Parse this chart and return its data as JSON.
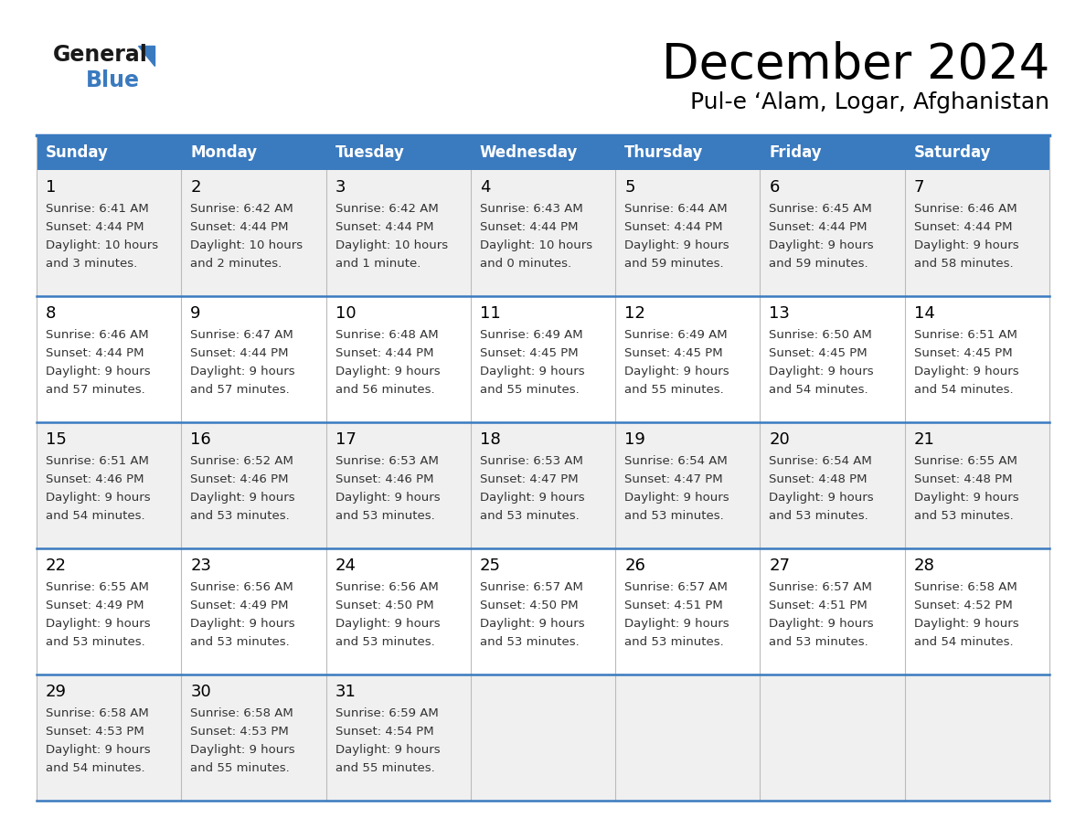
{
  "title": "December 2024",
  "subtitle": "Pul-e ‘Alam, Logar, Afghanistan",
  "header_color": "#3a7abf",
  "header_text_color": "#ffffff",
  "cell_bg_even": "#f0f0f0",
  "cell_bg_odd": "#ffffff",
  "text_color": "#333333",
  "border_color": "#3a7abf",
  "day_headers": [
    "Sunday",
    "Monday",
    "Tuesday",
    "Wednesday",
    "Thursday",
    "Friday",
    "Saturday"
  ],
  "weeks": [
    [
      {
        "day": "1",
        "sunrise": "6:41 AM",
        "sunset": "4:44 PM",
        "daylight_h": "10 hours",
        "daylight_m": "and 3 minutes."
      },
      {
        "day": "2",
        "sunrise": "6:42 AM",
        "sunset": "4:44 PM",
        "daylight_h": "10 hours",
        "daylight_m": "and 2 minutes."
      },
      {
        "day": "3",
        "sunrise": "6:42 AM",
        "sunset": "4:44 PM",
        "daylight_h": "10 hours",
        "daylight_m": "and 1 minute."
      },
      {
        "day": "4",
        "sunrise": "6:43 AM",
        "sunset": "4:44 PM",
        "daylight_h": "10 hours",
        "daylight_m": "and 0 minutes."
      },
      {
        "day": "5",
        "sunrise": "6:44 AM",
        "sunset": "4:44 PM",
        "daylight_h": "9 hours",
        "daylight_m": "and 59 minutes."
      },
      {
        "day": "6",
        "sunrise": "6:45 AM",
        "sunset": "4:44 PM",
        "daylight_h": "9 hours",
        "daylight_m": "and 59 minutes."
      },
      {
        "day": "7",
        "sunrise": "6:46 AM",
        "sunset": "4:44 PM",
        "daylight_h": "9 hours",
        "daylight_m": "and 58 minutes."
      }
    ],
    [
      {
        "day": "8",
        "sunrise": "6:46 AM",
        "sunset": "4:44 PM",
        "daylight_h": "9 hours",
        "daylight_m": "and 57 minutes."
      },
      {
        "day": "9",
        "sunrise": "6:47 AM",
        "sunset": "4:44 PM",
        "daylight_h": "9 hours",
        "daylight_m": "and 57 minutes."
      },
      {
        "day": "10",
        "sunrise": "6:48 AM",
        "sunset": "4:44 PM",
        "daylight_h": "9 hours",
        "daylight_m": "and 56 minutes."
      },
      {
        "day": "11",
        "sunrise": "6:49 AM",
        "sunset": "4:45 PM",
        "daylight_h": "9 hours",
        "daylight_m": "and 55 minutes."
      },
      {
        "day": "12",
        "sunrise": "6:49 AM",
        "sunset": "4:45 PM",
        "daylight_h": "9 hours",
        "daylight_m": "and 55 minutes."
      },
      {
        "day": "13",
        "sunrise": "6:50 AM",
        "sunset": "4:45 PM",
        "daylight_h": "9 hours",
        "daylight_m": "and 54 minutes."
      },
      {
        "day": "14",
        "sunrise": "6:51 AM",
        "sunset": "4:45 PM",
        "daylight_h": "9 hours",
        "daylight_m": "and 54 minutes."
      }
    ],
    [
      {
        "day": "15",
        "sunrise": "6:51 AM",
        "sunset": "4:46 PM",
        "daylight_h": "9 hours",
        "daylight_m": "and 54 minutes."
      },
      {
        "day": "16",
        "sunrise": "6:52 AM",
        "sunset": "4:46 PM",
        "daylight_h": "9 hours",
        "daylight_m": "and 53 minutes."
      },
      {
        "day": "17",
        "sunrise": "6:53 AM",
        "sunset": "4:46 PM",
        "daylight_h": "9 hours",
        "daylight_m": "and 53 minutes."
      },
      {
        "day": "18",
        "sunrise": "6:53 AM",
        "sunset": "4:47 PM",
        "daylight_h": "9 hours",
        "daylight_m": "and 53 minutes."
      },
      {
        "day": "19",
        "sunrise": "6:54 AM",
        "sunset": "4:47 PM",
        "daylight_h": "9 hours",
        "daylight_m": "and 53 minutes."
      },
      {
        "day": "20",
        "sunrise": "6:54 AM",
        "sunset": "4:48 PM",
        "daylight_h": "9 hours",
        "daylight_m": "and 53 minutes."
      },
      {
        "day": "21",
        "sunrise": "6:55 AM",
        "sunset": "4:48 PM",
        "daylight_h": "9 hours",
        "daylight_m": "and 53 minutes."
      }
    ],
    [
      {
        "day": "22",
        "sunrise": "6:55 AM",
        "sunset": "4:49 PM",
        "daylight_h": "9 hours",
        "daylight_m": "and 53 minutes."
      },
      {
        "day": "23",
        "sunrise": "6:56 AM",
        "sunset": "4:49 PM",
        "daylight_h": "9 hours",
        "daylight_m": "and 53 minutes."
      },
      {
        "day": "24",
        "sunrise": "6:56 AM",
        "sunset": "4:50 PM",
        "daylight_h": "9 hours",
        "daylight_m": "and 53 minutes."
      },
      {
        "day": "25",
        "sunrise": "6:57 AM",
        "sunset": "4:50 PM",
        "daylight_h": "9 hours",
        "daylight_m": "and 53 minutes."
      },
      {
        "day": "26",
        "sunrise": "6:57 AM",
        "sunset": "4:51 PM",
        "daylight_h": "9 hours",
        "daylight_m": "and 53 minutes."
      },
      {
        "day": "27",
        "sunrise": "6:57 AM",
        "sunset": "4:51 PM",
        "daylight_h": "9 hours",
        "daylight_m": "and 53 minutes."
      },
      {
        "day": "28",
        "sunrise": "6:58 AM",
        "sunset": "4:52 PM",
        "daylight_h": "9 hours",
        "daylight_m": "and 54 minutes."
      }
    ],
    [
      {
        "day": "29",
        "sunrise": "6:58 AM",
        "sunset": "4:53 PM",
        "daylight_h": "9 hours",
        "daylight_m": "and 54 minutes."
      },
      {
        "day": "30",
        "sunrise": "6:58 AM",
        "sunset": "4:53 PM",
        "daylight_h": "9 hours",
        "daylight_m": "and 55 minutes."
      },
      {
        "day": "31",
        "sunrise": "6:59 AM",
        "sunset": "4:54 PM",
        "daylight_h": "9 hours",
        "daylight_m": "and 55 minutes."
      },
      null,
      null,
      null,
      null
    ]
  ]
}
